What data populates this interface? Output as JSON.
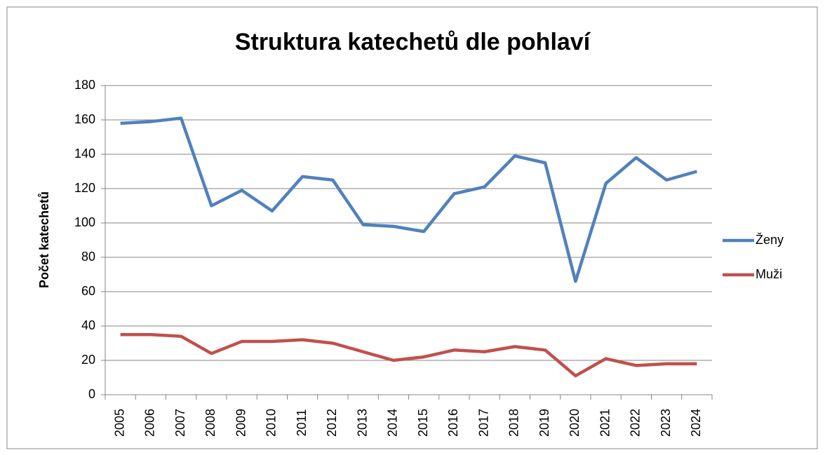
{
  "chart_data": {
    "type": "line",
    "title": "Struktura katechetů dle pohlaví",
    "y_label": "Počet katechetů",
    "categories": [
      "2005",
      "2006",
      "2007",
      "2008",
      "2009",
      "2010",
      "2011",
      "2012",
      "2013",
      "2014",
      "2015",
      "2016",
      "2017",
      "2018",
      "2019",
      "2020",
      "2021",
      "2022",
      "2023",
      "2024"
    ],
    "series": [
      {
        "name": "Ženy",
        "color": "#4f81bd",
        "values": [
          158,
          159,
          161,
          110,
          119,
          107,
          127,
          125,
          99,
          98,
          95,
          117,
          121,
          139,
          135,
          66,
          123,
          138,
          125,
          130
        ]
      },
      {
        "name": "Muži",
        "color": "#c0504d",
        "values": [
          35,
          35,
          34,
          24,
          31,
          31,
          32,
          30,
          25,
          20,
          22,
          26,
          25,
          28,
          26,
          11,
          21,
          17,
          18,
          18
        ]
      }
    ],
    "ylim": [
      0,
      180
    ],
    "yticks": [
      0,
      20,
      40,
      60,
      80,
      100,
      120,
      140,
      160,
      180
    ],
    "grid": true,
    "legend": "right"
  }
}
